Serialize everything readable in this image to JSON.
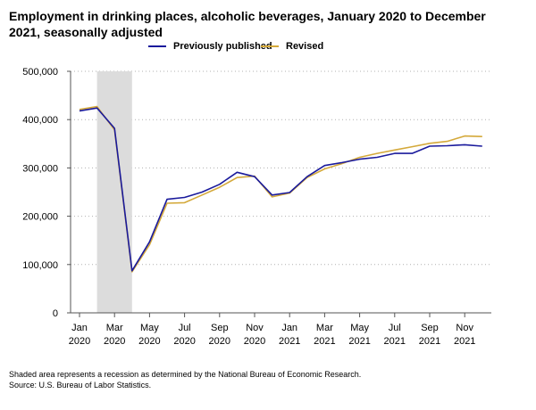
{
  "title": "Employment in drinking places, alcoholic beverages, January 2020 to December 2021, seasonally adjusted",
  "notes": {
    "shading": "Shaded area represents a recession as determined by the National Bureau of Economic Research.",
    "source": "Source: U.S. Bureau of Labor Statistics."
  },
  "colors": {
    "previously_published": "#1a1a9c",
    "revised": "#d4a93a",
    "recession": "#dcdcdc",
    "grid": "#b0b0b0",
    "axis": "#555555"
  },
  "chart_data": {
    "type": "line",
    "title": "Employment in drinking places, alcoholic beverages, January 2020 to December 2021, seasonally adjusted",
    "x": [
      "2020-01",
      "2020-02",
      "2020-03",
      "2020-04",
      "2020-05",
      "2020-06",
      "2020-07",
      "2020-08",
      "2020-09",
      "2020-10",
      "2020-11",
      "2020-12",
      "2021-01",
      "2021-02",
      "2021-03",
      "2021-04",
      "2021-05",
      "2021-06",
      "2021-07",
      "2021-08",
      "2021-09",
      "2021-10",
      "2021-11",
      "2021-12"
    ],
    "tick_labels": [
      {
        "month": "Jan",
        "year": "2020",
        "index": 0
      },
      {
        "month": "Mar",
        "year": "2020",
        "index": 2
      },
      {
        "month": "May",
        "year": "2020",
        "index": 4
      },
      {
        "month": "Jul",
        "year": "2020",
        "index": 6
      },
      {
        "month": "Sep",
        "year": "2020",
        "index": 8
      },
      {
        "month": "Nov",
        "year": "2020",
        "index": 10
      },
      {
        "month": "Jan",
        "year": "2021",
        "index": 12
      },
      {
        "month": "Mar",
        "year": "2021",
        "index": 14
      },
      {
        "month": "May",
        "year": "2021",
        "index": 16
      },
      {
        "month": "Jul",
        "year": "2021",
        "index": 18
      },
      {
        "month": "Sep",
        "year": "2021",
        "index": 20
      },
      {
        "month": "Nov",
        "year": "2021",
        "index": 22
      }
    ],
    "y_ticks": [
      0,
      100000,
      200000,
      300000,
      400000,
      500000
    ],
    "y_tick_labels": [
      "0",
      "100,000",
      "200,000",
      "300,000",
      "400,000",
      "500,000"
    ],
    "ylim": [
      0,
      500000
    ],
    "xlabel": "",
    "ylabel": "",
    "recession": {
      "start": "2020-02",
      "end": "2020-04"
    },
    "grid": "horizontal dotted",
    "legend_position": "top",
    "series": [
      {
        "name": "Previously published",
        "values": [
          418000,
          424000,
          382000,
          87000,
          147000,
          235000,
          239000,
          250000,
          266000,
          291000,
          282000,
          244000,
          249000,
          282000,
          305000,
          311000,
          318000,
          322000,
          330000,
          330000,
          345000,
          346000,
          348000,
          345000
        ]
      },
      {
        "name": "Revised",
        "values": [
          421000,
          427000,
          379000,
          85000,
          141000,
          227000,
          228000,
          244000,
          260000,
          280000,
          283000,
          240000,
          248000,
          280000,
          298000,
          309000,
          322000,
          330000,
          337000,
          344000,
          351000,
          355000,
          366000,
          365000
        ]
      }
    ]
  }
}
